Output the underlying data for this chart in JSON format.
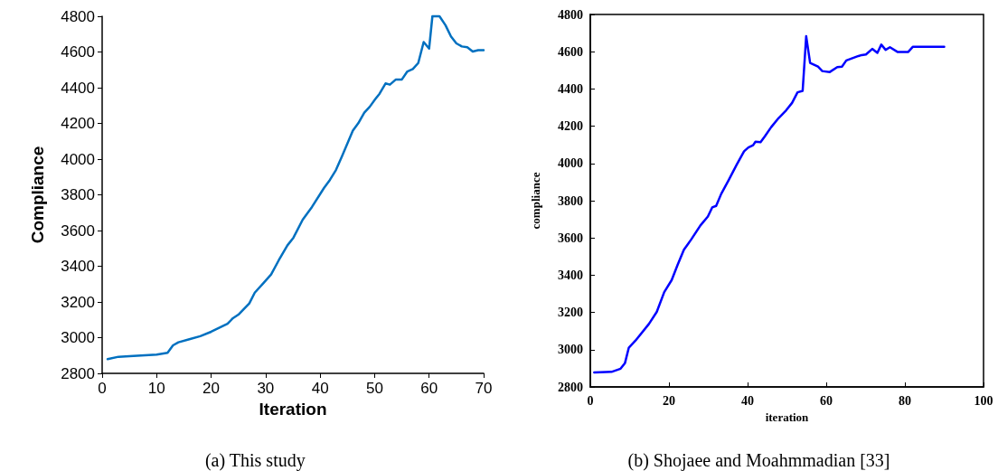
{
  "chart_data": [
    {
      "type": "line",
      "xlabel": "Iteration",
      "ylabel": "Compliance",
      "annotations": [
        "(a) This study"
      ],
      "xlim": [
        0,
        70
      ],
      "ylim": [
        2800,
        4800
      ],
      "xticks": [
        0,
        10,
        20,
        30,
        40,
        50,
        60,
        70
      ],
      "yticks": [
        2800,
        3000,
        3200,
        3400,
        3600,
        3800,
        4000,
        4200,
        4400,
        4600,
        4800
      ],
      "grid": false,
      "marker": "none",
      "line_style": "solid",
      "series": [
        {
          "color": "#0070c0",
          "x": [
            1,
            3,
            5,
            10,
            12,
            13,
            14,
            16,
            18,
            20,
            23,
            24,
            25,
            27,
            28,
            29.6,
            31,
            32.4,
            34,
            35.1,
            36.8,
            38.5,
            40.7,
            41.8,
            42.9,
            44,
            46,
            47,
            48.1,
            49.1,
            50.1,
            50.9,
            52,
            52.8,
            53.9,
            55,
            56,
            57,
            58,
            59,
            60,
            60.6,
            61.9,
            63,
            64,
            65,
            66,
            67,
            68,
            69,
            70
          ],
          "values": [
            2880,
            2893,
            2896,
            2905,
            2915,
            2957,
            2974,
            2991,
            3008,
            3033,
            3078,
            3109,
            3129,
            3192,
            3252,
            3306,
            3354,
            3433,
            3517,
            3560,
            3661,
            3732,
            3838,
            3884,
            3939,
            4015,
            4159,
            4201,
            4260,
            4293,
            4335,
            4366,
            4424,
            4417,
            4446,
            4446,
            4491,
            4504,
            4538,
            4656,
            4619,
            4800,
            4800,
            4750,
            4687,
            4648,
            4631,
            4627,
            4603,
            4610,
            4610
          ]
        }
      ]
    },
    {
      "type": "line",
      "xlabel": "iteration",
      "ylabel": "compliance",
      "annotations": [
        "(b) Shojaee and Moahmmadian [33]"
      ],
      "xlim": [
        0,
        100
      ],
      "ylim": [
        2800,
        4800
      ],
      "xticks": [
        0,
        20,
        40,
        60,
        80,
        100
      ],
      "yticks": [
        2800,
        3000,
        3200,
        3400,
        3600,
        3800,
        4000,
        4200,
        4400,
        4600,
        4800
      ],
      "grid": false,
      "marker": "none",
      "line_style": "solid",
      "series": [
        {
          "color": "#0000ff",
          "x": [
            1,
            5.4,
            7.7,
            8.8,
            9.8,
            11.5,
            14.9,
            16.9,
            18.8,
            20.7,
            22.2,
            23.8,
            25.7,
            28,
            29.9,
            31,
            32,
            33.3,
            35.2,
            37.2,
            39.1,
            40.2,
            41.4,
            42,
            43.3,
            44.4,
            46,
            47.9,
            49.8,
            51.3,
            52.7,
            54,
            54.9,
            55.9,
            57.9,
            59,
            60.9,
            62.8,
            64,
            65.1,
            68.2,
            69,
            70.1,
            71.7,
            73,
            74,
            75.1,
            76.2,
            78.2,
            80.8,
            82,
            90
          ],
          "values": [
            2878,
            2881,
            2898,
            2927,
            3011,
            3049,
            3138,
            3203,
            3309,
            3374,
            3455,
            3537,
            3593,
            3667,
            3715,
            3764,
            3772,
            3837,
            3911,
            3992,
            4065,
            4086,
            4098,
            4117,
            4114,
            4146,
            4195,
            4244,
            4285,
            4325,
            4382,
            4390,
            4683,
            4540,
            4520,
            4496,
            4491,
            4517,
            4520,
            4553,
            4577,
            4582,
            4585,
            4615,
            4594,
            4638,
            4610,
            4624,
            4598,
            4598,
            4626,
            4626
          ]
        }
      ]
    }
  ]
}
